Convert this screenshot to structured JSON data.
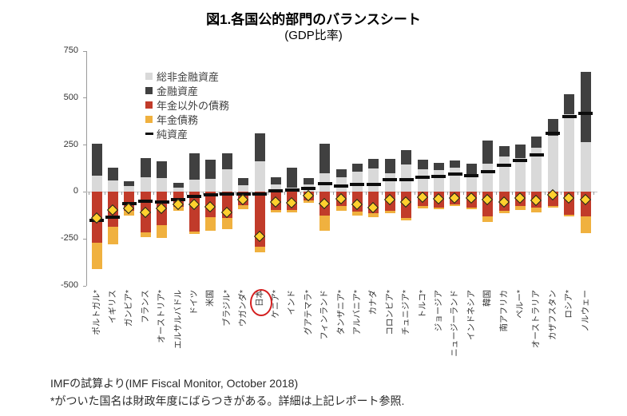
{
  "figure": {
    "title": "図1.各国公的部門のバランスシート",
    "subtitle": "(GDP比率)"
  },
  "footer": {
    "source": "IMFの試算より(IMF Fiscal Monitor, October 2018)",
    "note": "*がついた国名は財政年度にばらつきがある。詳細は上記レポート参照."
  },
  "colors": {
    "nonfinancial_assets": "#d9d9d9",
    "financial_assets": "#404040",
    "non_pension_liabilities": "#c13b2a",
    "pension_liabilities": "#f0b13f",
    "net_worth": "#0d0d0d",
    "diamond_marker": "#ffd02e",
    "highlight_circle": "#d41f1f"
  },
  "chart_data": {
    "type": "bar",
    "stacked": true,
    "unit": "% of GDP",
    "ylim": [
      -500,
      750
    ],
    "yticks": [
      750,
      500,
      250,
      0,
      -250,
      -500
    ],
    "grid": false,
    "legend_position": "top-left-inside",
    "highlighted_category": "日本",
    "categories": [
      "ポルトガル*",
      "イギリス",
      "ガンビア*",
      "フランス",
      "オーストリア*",
      "エルサルバドル",
      "ドイツ",
      "米国",
      "ブラジル*",
      "ウガンダ*",
      "日本",
      "ケニア*",
      "インド",
      "グアテマラ*",
      "フィンランド",
      "タンザニア*",
      "アルバニア*",
      "カナダ",
      "コロンビア*",
      "チュニジア*",
      "トルコ*",
      "ジョージア",
      "ニュージーランド",
      "インドネシア",
      "韓国",
      "南アフリカ",
      "ペルー*",
      "オーストラリア",
      "カザフスタン",
      "ロシア*",
      "ノルウェー"
    ],
    "series": [
      {
        "key": "nonfinancial_assets",
        "name": "総非金融資産",
        "kind": "bar",
        "values": [
          85,
          60,
          30,
          80,
          75,
          25,
          65,
          70,
          120,
          35,
          165,
          38,
          25,
          40,
          100,
          80,
          110,
          125,
          100,
          145,
          120,
          115,
          130,
          78,
          150,
          190,
          180,
          235,
          300,
          415,
          265
        ]
      },
      {
        "key": "financial_assets",
        "name": "金融資産",
        "kind": "bar",
        "values": [
          170,
          70,
          25,
          100,
          90,
          25,
          140,
          100,
          85,
          37,
          145,
          40,
          105,
          35,
          155,
          42,
          40,
          53,
          75,
          78,
          53,
          41,
          38,
          74,
          125,
          55,
          72,
          62,
          90,
          105,
          375
        ]
      },
      {
        "key": "non_pension_liabilities",
        "name": "年金以外の債務",
        "kind": "bar",
        "values": [
          -270,
          -185,
          -100,
          -215,
          -175,
          -80,
          -210,
          -135,
          -140,
          -70,
          -290,
          -95,
          -95,
          -45,
          -125,
          -75,
          -105,
          -115,
          -100,
          -140,
          -75,
          -82,
          -66,
          -82,
          -130,
          -100,
          -75,
          -82,
          -75,
          -120,
          -130
        ]
      },
      {
        "key": "pension_liabilities",
        "name": "年金債務",
        "kind": "bar",
        "values": [
          -140,
          -95,
          -25,
          -25,
          -70,
          -20,
          -12,
          -70,
          -60,
          -20,
          -30,
          -13,
          -15,
          -12,
          -80,
          -25,
          -20,
          -20,
          -12,
          -12,
          -11,
          -10,
          -8,
          -8,
          -30,
          -15,
          -20,
          -25,
          -8,
          -11,
          -90
        ]
      },
      {
        "key": "net_worth",
        "name": "純資産",
        "kind": "dash-marker",
        "values": [
          -150,
          -135,
          -60,
          -50,
          -55,
          -40,
          -25,
          -15,
          -10,
          -12,
          -10,
          5,
          10,
          20,
          45,
          33,
          38,
          38,
          65,
          65,
          78,
          82,
          95,
          85,
          110,
          140,
          168,
          197,
          310,
          400,
          420
        ]
      },
      {
        "key": "diamond_marker",
        "name": "diamond-marker",
        "kind": "diamond-marker",
        "values": [
          -140,
          -100,
          -90,
          -110,
          -90,
          -70,
          -70,
          -80,
          -110,
          -45,
          -240,
          -55,
          -60,
          -20,
          -65,
          -40,
          -70,
          -85,
          -45,
          -55,
          -30,
          -37,
          -33,
          -33,
          -45,
          -55,
          -33,
          -49,
          -16,
          -34,
          -43
        ]
      }
    ]
  }
}
